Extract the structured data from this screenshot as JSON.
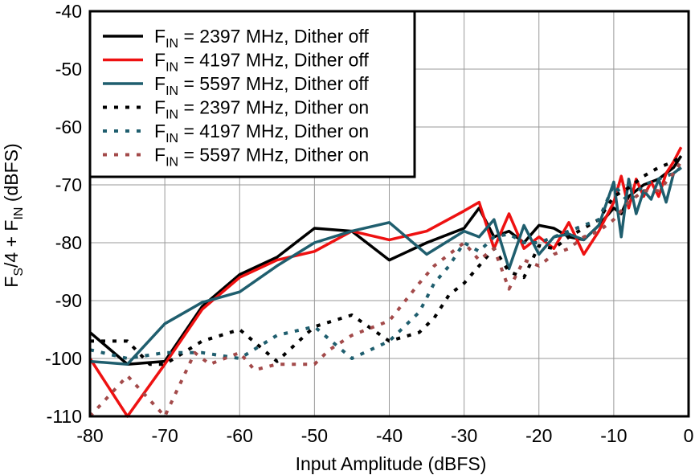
{
  "chart_data": {
    "type": "line",
    "xlabel": "Input Amplitude (dBFS)",
    "ylabel": {
      "pre": "F",
      "s1": "S",
      "mid": "/4 + F",
      "s2": "IN",
      "post": " (dBFS)"
    },
    "xlim": [
      -80,
      0
    ],
    "ylim": [
      -110,
      -40
    ],
    "xticks": [
      -80,
      -70,
      -60,
      -50,
      -40,
      -30,
      -20,
      -10,
      0
    ],
    "yticks": [
      -110,
      -100,
      -90,
      -80,
      -70,
      -60,
      -50,
      -40
    ],
    "grid": true,
    "legend_position": "top-left",
    "series": [
      {
        "name": {
          "pre": "F",
          "sub": "IN",
          "post": " = 2397 MHz, Dither off"
        },
        "color": "#000000",
        "dash": "solid",
        "x": [
          -80,
          -75,
          -70,
          -65,
          -60,
          -55,
          -50,
          -45,
          -40,
          -35,
          -30,
          -28,
          -26,
          -24,
          -22,
          -20,
          -18,
          -16,
          -14,
          -12,
          -10,
          -9,
          -8,
          -6,
          -4,
          -2,
          -1
        ],
        "y": [
          -95.5,
          -101,
          -100.5,
          -91,
          -85.5,
          -82.5,
          -77.5,
          -78,
          -83,
          -80,
          -77.5,
          -74,
          -79,
          -78,
          -80,
          -77,
          -77.5,
          -79,
          -79.5,
          -77,
          -74,
          -75,
          -72,
          -70,
          -69,
          -67,
          -65
        ]
      },
      {
        "name": {
          "pre": "F",
          "sub": "IN",
          "post": " = 4197 MHz, Dither off"
        },
        "color": "#ee1111",
        "dash": "solid",
        "x": [
          -80,
          -75,
          -70,
          -65,
          -60,
          -55,
          -50,
          -45,
          -40,
          -35,
          -30,
          -28,
          -26,
          -24,
          -22,
          -20,
          -18,
          -16,
          -14,
          -12,
          -10,
          -9,
          -8,
          -7,
          -6,
          -5,
          -4,
          -3,
          -2,
          -1
        ],
        "y": [
          -100,
          -110,
          -101,
          -91.5,
          -86,
          -83,
          -81.5,
          -78,
          -79.5,
          -78,
          -74.5,
          -73,
          -81,
          -75,
          -81,
          -79,
          -81,
          -76.5,
          -82,
          -78,
          -73,
          -68.5,
          -74,
          -69,
          -72,
          -69.5,
          -72,
          -68,
          -66,
          -63.5
        ]
      },
      {
        "name": {
          "pre": "F",
          "sub": "IN",
          "post": " = 5597 MHz, Dither off"
        },
        "color": "#1f5e6e",
        "dash": "solid",
        "x": [
          -80,
          -75,
          -70,
          -65,
          -60,
          -55,
          -50,
          -45,
          -40,
          -35,
          -30,
          -28,
          -26,
          -24,
          -22,
          -20,
          -18,
          -16,
          -14,
          -12,
          -10,
          -9,
          -8,
          -7,
          -6,
          -5,
          -4,
          -3,
          -2,
          -1
        ],
        "y": [
          -100.5,
          -101,
          -94,
          -90.3,
          -88.5,
          -84,
          -80,
          -78,
          -76.5,
          -82,
          -78,
          -79,
          -76,
          -84.5,
          -77,
          -82,
          -79,
          -78.5,
          -79.5,
          -77,
          -69.5,
          -79,
          -69,
          -75,
          -71,
          -72.5,
          -69,
          -73,
          -68,
          -67
        ]
      },
      {
        "name": {
          "pre": "F",
          "sub": "IN",
          "post": " = 2397 MHz, Dither on"
        },
        "color": "#000000",
        "dash": "dotted",
        "x": [
          -80,
          -75,
          -72,
          -70,
          -65,
          -60,
          -55,
          -50,
          -45,
          -40,
          -36,
          -34,
          -32,
          -30,
          -28,
          -26,
          -24,
          -22,
          -20,
          -18,
          -16,
          -14,
          -12,
          -10,
          -8,
          -6,
          -4,
          -2,
          -1
        ],
        "y": [
          -97,
          -97,
          -101,
          -101,
          -97,
          -95,
          -100.5,
          -94.5,
          -92.5,
          -97,
          -95.5,
          -93,
          -89,
          -87,
          -84,
          -81,
          -85,
          -86,
          -80.5,
          -81,
          -79,
          -77.5,
          -76,
          -72,
          -70.5,
          -68.5,
          -67,
          -66,
          -65
        ]
      },
      {
        "name": {
          "pre": "F",
          "sub": "IN",
          "post": " = 4197 MHz, Dither on"
        },
        "color": "#1f5e6e",
        "dash": "dotted",
        "x": [
          -80,
          -75,
          -70,
          -65,
          -60,
          -55,
          -50,
          -45,
          -40,
          -36,
          -34,
          -32,
          -30,
          -28,
          -26,
          -24,
          -22,
          -20,
          -18,
          -16,
          -14,
          -12,
          -10,
          -8,
          -6,
          -4,
          -2,
          -1
        ],
        "y": [
          -98.5,
          -100,
          -99,
          -99,
          -100,
          -96,
          -94.5,
          -100,
          -97,
          -92,
          -87,
          -84,
          -80,
          -81.5,
          -79,
          -78.5,
          -80,
          -80,
          -79,
          -78,
          -77,
          -76,
          -70,
          -73,
          -70,
          -69,
          -68,
          -67
        ]
      },
      {
        "name": {
          "pre": "F",
          "sub": "IN",
          "post": " = 5597 MHz, Dither on"
        },
        "color": "#a34a4a",
        "dash": "dotted",
        "x": [
          -80,
          -75,
          -70,
          -66,
          -64,
          -60,
          -58,
          -55,
          -50,
          -48,
          -45,
          -40,
          -36,
          -34,
          -32,
          -30,
          -28,
          -26,
          -24,
          -22,
          -20,
          -18,
          -16,
          -14,
          -12,
          -10,
          -8,
          -6,
          -4,
          -2,
          -1
        ],
        "y": [
          -110,
          -103,
          -110,
          -99,
          -101,
          -99,
          -102,
          -101,
          -101,
          -98.5,
          -96,
          -93.5,
          -87,
          -84,
          -82,
          -80,
          -83,
          -81,
          -88,
          -83,
          -84,
          -82,
          -81,
          -79,
          -78,
          -76,
          -73,
          -71,
          -71,
          -68,
          -66
        ]
      }
    ]
  }
}
